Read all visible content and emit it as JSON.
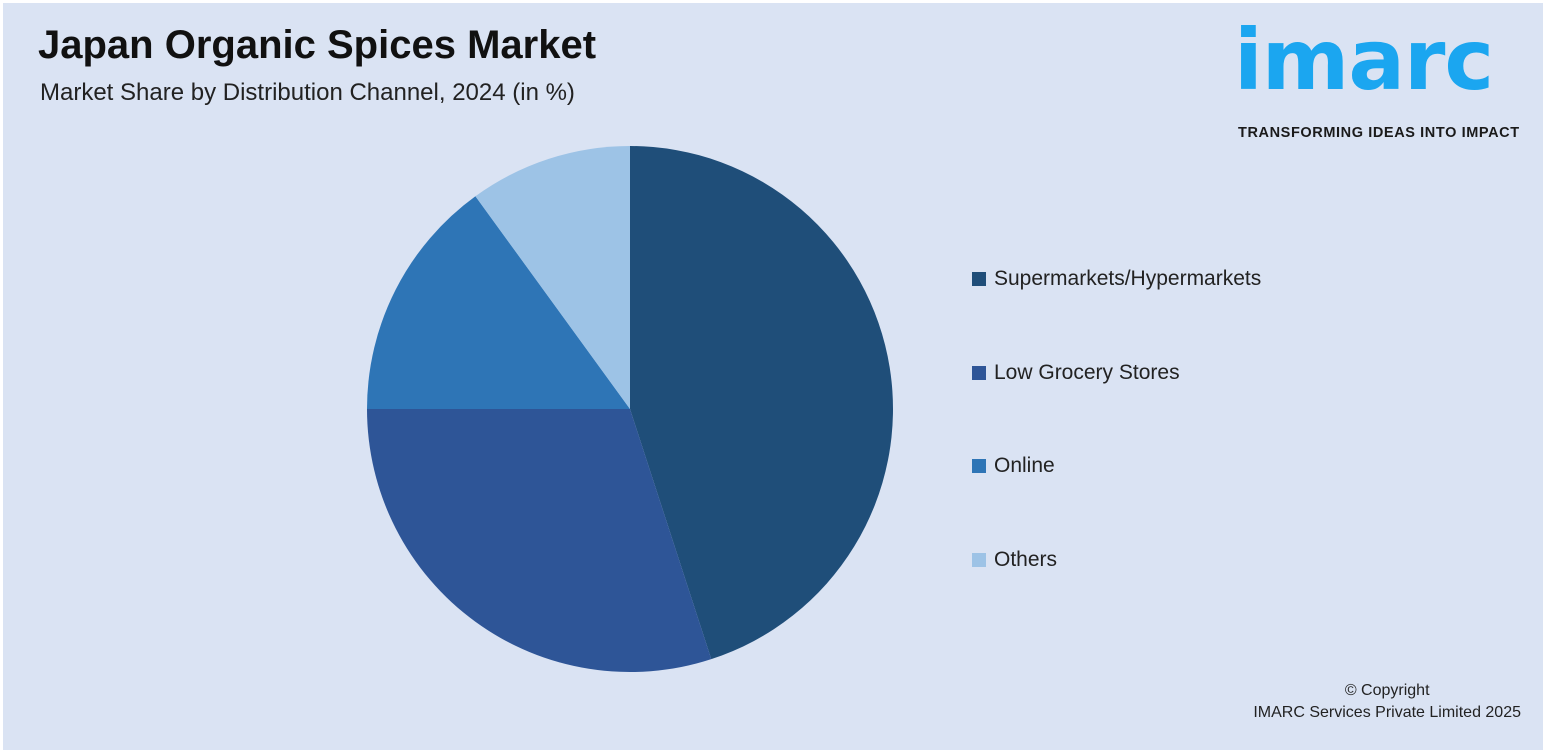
{
  "header": {
    "title": "Japan Organic Spices Market",
    "subtitle": "Market Share by Distribution Channel, 2024 (in %)"
  },
  "logo": {
    "word": "imarc",
    "tagline": "TRANSFORMING IDEAS INTO IMPACT",
    "color": "#1ba6f0"
  },
  "chart_data": {
    "type": "pie",
    "title": "Japan Organic Spices Market",
    "subtitle": "Market Share by Distribution Channel, 2024 (in %)",
    "categories": [
      "Supermarkets/Hypermarkets",
      "Low Grocery Stores",
      "Online",
      "Others"
    ],
    "values": [
      45,
      30,
      15,
      10
    ],
    "colors": [
      "#1f4e79",
      "#2e5597",
      "#2e75b6",
      "#9dc3e6"
    ],
    "start_angle": "12 o'clock",
    "direction": "clockwise",
    "legend_position": "right"
  },
  "footer": {
    "copyright": "© Copyright",
    "company": "IMARC Services Private Limited 2025"
  }
}
